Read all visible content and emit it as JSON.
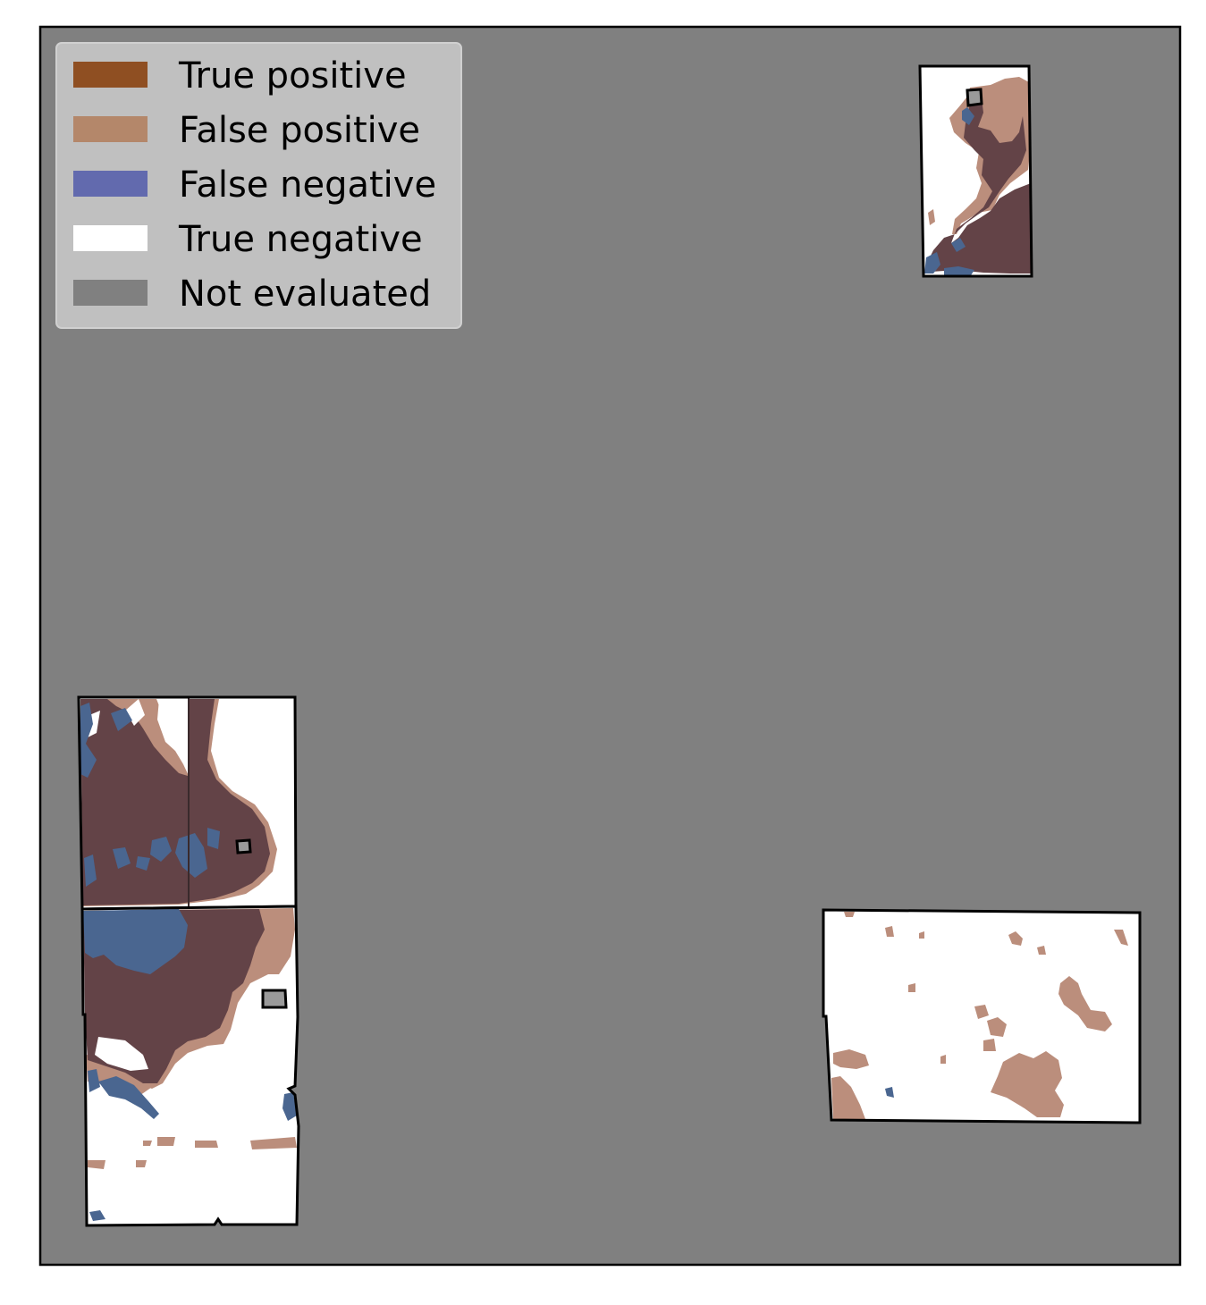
{
  "map": {
    "background_color": "#808080",
    "outline_color": "#000000"
  },
  "legend": {
    "placement": "top-left",
    "background_color": "#c0c0c0",
    "items": [
      {
        "label": "True positive",
        "color": "#8f4f22"
      },
      {
        "label": "False positive",
        "color": "#b4876a"
      },
      {
        "label": "False negative",
        "color": "#626aae"
      },
      {
        "label": "True negative",
        "color": "#ffffff"
      },
      {
        "label": "Not evaluated",
        "color": "#808080"
      }
    ]
  },
  "overlay_colors": {
    "true_positive_overlap": "#634347",
    "false_positive": "#bb8e7c",
    "false_negative": "#4a6690",
    "true_negative": "#ffffff"
  }
}
